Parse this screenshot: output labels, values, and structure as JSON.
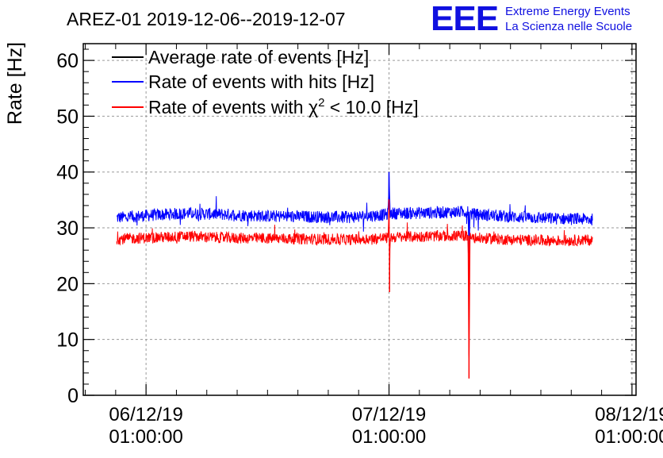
{
  "header": {
    "title": "AREZ-01 2019-12-06--2019-12-07",
    "logo_text": "EEE",
    "logo_line1": "Extreme Energy Events",
    "logo_line2": "La Scienza nelle Scuole"
  },
  "colors": {
    "average": "#000000",
    "hits": "#0000ff",
    "chi2": "#ff0000",
    "grid": "#9a9a9a",
    "logo": "#1010e0"
  },
  "chart_data": {
    "type": "line",
    "title": "AREZ-01 2019-12-06--2019-12-07",
    "ylabel": "Rate [Hz]",
    "xlabel": "",
    "ylim": [
      0,
      63
    ],
    "yticks": [
      0,
      10,
      20,
      30,
      40,
      50,
      60
    ],
    "grid": true,
    "legend_position": "top-left",
    "x_axis": {
      "type": "time",
      "tick_labels": [
        {
          "date": "06/12/19",
          "time": "01:00:00",
          "t_hours": 0
        },
        {
          "date": "07/12/19",
          "time": "01:00:00",
          "t_hours": 24
        },
        {
          "date": "08/12/19",
          "time": "01:00:00",
          "t_hours": 48
        }
      ],
      "xlim_hours": [
        -6.2,
        48.4
      ]
    },
    "series": [
      {
        "name": "Average rate of events [Hz]",
        "color": "#000000",
        "visible": false,
        "points": [
          [
            -2.9,
            31.8
          ],
          [
            44.1,
            31.5
          ]
        ]
      },
      {
        "name": "Rate of events with hits [Hz]",
        "color": "#0000ff",
        "noise": 1.1,
        "points": [
          [
            -2.9,
            31.8
          ],
          [
            0,
            32.2
          ],
          [
            4,
            32.6
          ],
          [
            8,
            32.4
          ],
          [
            12,
            32.1
          ],
          [
            16,
            32.0
          ],
          [
            20,
            31.9
          ],
          [
            23.9,
            32.4
          ],
          [
            24.0,
            40.0
          ],
          [
            24.1,
            32.6
          ],
          [
            28,
            32.7
          ],
          [
            31.8,
            32.9
          ],
          [
            31.9,
            25.5
          ],
          [
            32.0,
            32.5
          ],
          [
            36,
            32.0
          ],
          [
            40,
            31.7
          ],
          [
            44.1,
            31.5
          ]
        ]
      },
      {
        "name": "Rate of events with χ² < 10.0 [Hz]",
        "color": "#ff0000",
        "noise": 1.0,
        "points": [
          [
            -2.9,
            28.0
          ],
          [
            0,
            28.2
          ],
          [
            4,
            28.5
          ],
          [
            8,
            28.2
          ],
          [
            12,
            28.1
          ],
          [
            16,
            28.0
          ],
          [
            20,
            27.9
          ],
          [
            23.9,
            28.2
          ],
          [
            24.0,
            35.0
          ],
          [
            24.05,
            18.5
          ],
          [
            24.1,
            28.3
          ],
          [
            28,
            28.5
          ],
          [
            31.8,
            28.6
          ],
          [
            31.9,
            3.0
          ],
          [
            32.0,
            28.2
          ],
          [
            36,
            27.9
          ],
          [
            40,
            27.7
          ],
          [
            44.1,
            27.8
          ]
        ]
      }
    ]
  }
}
